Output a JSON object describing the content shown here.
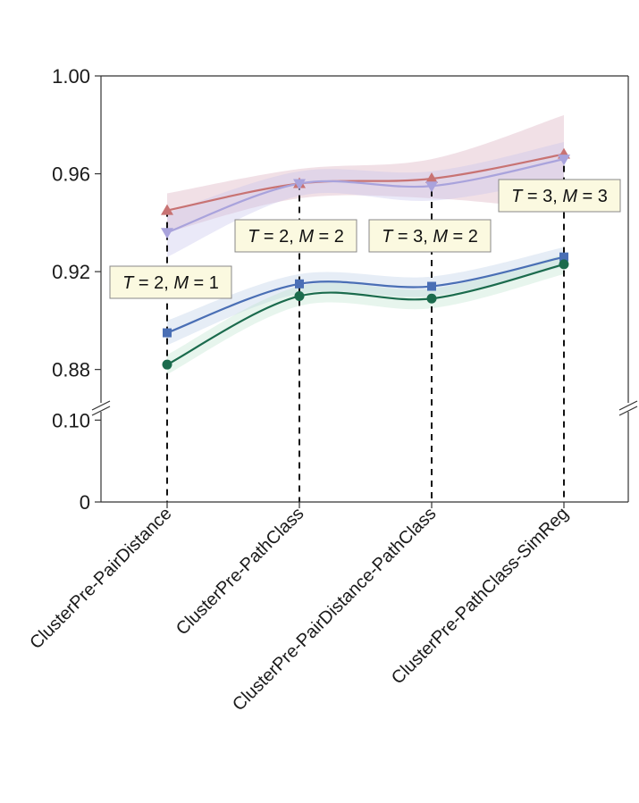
{
  "chart_data": {
    "type": "line",
    "categories": [
      "ClusterPre-PairDistance",
      "ClusterPre-PathClass",
      "ClusterPre-PairDistance-PathClass",
      "ClusterPre-PathClass-SimReg"
    ],
    "y_ticks_upper": [
      "0.88",
      "0.92",
      "0.96",
      "1.00"
    ],
    "y_ticks_lower": [
      "0",
      "0.10"
    ],
    "ylim_upper": [
      0.866,
      1.0
    ],
    "ylim_lower": [
      0,
      0.12
    ],
    "axis_break": true,
    "grid": false,
    "legend": "none",
    "series": [
      {
        "marker": "triangle-up",
        "color": "#c87373",
        "band_color": "#d7a7b6",
        "values": [
          0.945,
          0.956,
          0.958,
          0.968
        ],
        "lower": [
          0.936,
          0.95,
          0.95,
          0.945
        ],
        "upper": [
          0.952,
          0.962,
          0.966,
          0.984
        ]
      },
      {
        "marker": "triangle-down",
        "color": "#a9a3dc",
        "band_color": "#c4c0ea",
        "values": [
          0.936,
          0.956,
          0.955,
          0.966
        ],
        "lower": [
          0.926,
          0.951,
          0.949,
          0.958
        ],
        "upper": [
          0.944,
          0.961,
          0.961,
          0.973
        ]
      },
      {
        "marker": "square",
        "color": "#4a6fb5",
        "band_color": "#b7cce6",
        "values": [
          0.895,
          0.915,
          0.914,
          0.926
        ],
        "lower": [
          0.89,
          0.911,
          0.91,
          0.922
        ],
        "upper": [
          0.9,
          0.919,
          0.918,
          0.93
        ]
      },
      {
        "marker": "circle",
        "color": "#1b6b4d",
        "band_color": "#b9e3cc",
        "values": [
          0.882,
          0.91,
          0.909,
          0.923
        ],
        "lower": [
          0.878,
          0.906,
          0.905,
          0.919
        ],
        "upper": [
          0.886,
          0.914,
          0.913,
          0.927
        ]
      }
    ],
    "annotations": [
      {
        "category": 0,
        "T": "2",
        "M": "1"
      },
      {
        "category": 1,
        "T": "2",
        "M": "2"
      },
      {
        "category": 2,
        "T": "3",
        "M": "2"
      },
      {
        "category": 3,
        "T": "3",
        "M": "3"
      }
    ]
  }
}
